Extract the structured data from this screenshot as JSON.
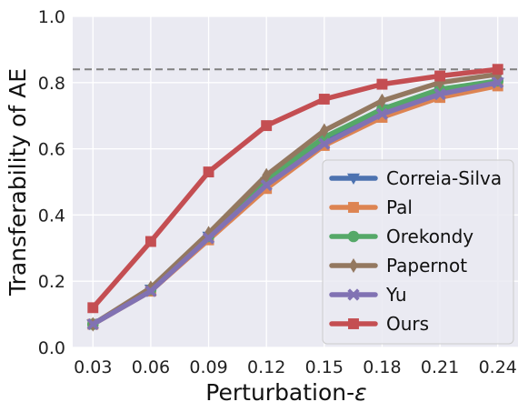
{
  "chart_data": {
    "type": "line",
    "xlabel": "Perturbation-",
    "xlabel_symbol": "ε",
    "ylabel": "Transferability of AE",
    "x": [
      0.03,
      0.06,
      0.09,
      0.12,
      0.15,
      0.18,
      0.21,
      0.24
    ],
    "x_tick_labels": [
      "0.03",
      "0.06",
      "0.09",
      "0.12",
      "0.15",
      "0.18",
      "0.21",
      "0.24"
    ],
    "ylim": [
      0.0,
      1.0
    ],
    "y_ticks": [
      0.0,
      0.2,
      0.4,
      0.6,
      0.8,
      1.0
    ],
    "y_tick_labels": [
      "0.0",
      "0.2",
      "0.4",
      "0.6",
      "0.8",
      "1.0"
    ],
    "grid": true,
    "background": "#eaeaf2",
    "reference_line": {
      "y": 0.84,
      "style": "dashed",
      "color": "#808080"
    },
    "legend_position": "lower-right",
    "series": [
      {
        "name": "Correia-Silva",
        "color": "#4c72b0",
        "marker": "triangle-down",
        "values": [
          0.07,
          0.175,
          0.335,
          0.5,
          0.625,
          0.72,
          0.775,
          0.8
        ]
      },
      {
        "name": "Pal",
        "color": "#dd8452",
        "marker": "square",
        "values": [
          0.07,
          0.17,
          0.325,
          0.48,
          0.61,
          0.695,
          0.755,
          0.79
        ]
      },
      {
        "name": "Orekondy",
        "color": "#55a868",
        "marker": "circle",
        "values": [
          0.07,
          0.175,
          0.335,
          0.505,
          0.635,
          0.72,
          0.78,
          0.805
        ]
      },
      {
        "name": "Papernot",
        "color": "#937860",
        "marker": "thin-diamond",
        "values": [
          0.07,
          0.18,
          0.345,
          0.52,
          0.655,
          0.745,
          0.8,
          0.825
        ]
      },
      {
        "name": "Yu",
        "color": "#8172b3",
        "marker": "x-filled",
        "values": [
          0.07,
          0.17,
          0.33,
          0.49,
          0.615,
          0.705,
          0.765,
          0.8
        ]
      },
      {
        "name": "Ours",
        "color": "#c44e52",
        "marker": "square",
        "values": [
          0.12,
          0.32,
          0.53,
          0.67,
          0.75,
          0.795,
          0.82,
          0.84
        ]
      }
    ]
  }
}
